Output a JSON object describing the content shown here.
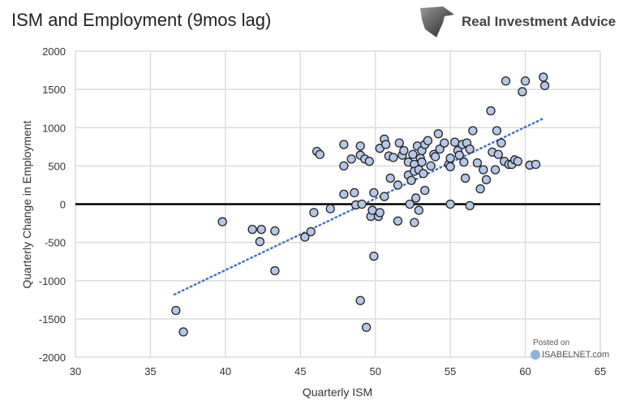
{
  "header": {
    "title": "ISM and Employment (9mos lag)",
    "brand": "Real Investment Advice"
  },
  "watermark": {
    "posted": "Posted on",
    "site": "ISABELNET.com"
  },
  "chart_data": {
    "type": "scatter",
    "title": "ISM and Employment (9mos lag)",
    "xlabel": "Quarterly ISM",
    "ylabel": "Quarterly Change in Employment",
    "xlim": [
      30,
      65
    ],
    "ylim": [
      -2000,
      2000
    ],
    "xticks": [
      "30",
      "35",
      "40",
      "45",
      "50",
      "55",
      "60",
      "65"
    ],
    "yticks": [
      "2000",
      "1500",
      "1000",
      "500",
      "0",
      "-500",
      "-1000",
      "-1500",
      "-2000"
    ],
    "grid": true,
    "marker_color": "#b4c7e7",
    "trendline": {
      "style": "dotted",
      "color": "#4472c4",
      "points": [
        [
          36.6,
          -1180
        ],
        [
          61.2,
          1120
        ]
      ]
    },
    "points": [
      [
        36.7,
        -1390
      ],
      [
        37.2,
        -1670
      ],
      [
        39.8,
        -230
      ],
      [
        41.8,
        -330
      ],
      [
        42.4,
        -330
      ],
      [
        42.3,
        -490
      ],
      [
        43.3,
        -350
      ],
      [
        43.3,
        -870
      ],
      [
        45.3,
        -430
      ],
      [
        45.7,
        -360
      ],
      [
        45.9,
        -110
      ],
      [
        46.1,
        690
      ],
      [
        46.3,
        650
      ],
      [
        47.0,
        -60
      ],
      [
        47.9,
        780
      ],
      [
        47.9,
        500
      ],
      [
        47.9,
        130
      ],
      [
        48.4,
        590
      ],
      [
        48.6,
        150
      ],
      [
        48.7,
        -10
      ],
      [
        49.0,
        640
      ],
      [
        49.0,
        760
      ],
      [
        49.3,
        590
      ],
      [
        49.1,
        0
      ],
      [
        49.0,
        -1260
      ],
      [
        49.4,
        -1610
      ],
      [
        49.6,
        560
      ],
      [
        49.7,
        -160
      ],
      [
        49.8,
        -80
      ],
      [
        49.9,
        150
      ],
      [
        49.9,
        -680
      ],
      [
        50.2,
        -160
      ],
      [
        50.3,
        -110
      ],
      [
        50.3,
        730
      ],
      [
        50.6,
        850
      ],
      [
        50.7,
        780
      ],
      [
        50.6,
        100
      ],
      [
        50.9,
        630
      ],
      [
        51.0,
        340
      ],
      [
        51.2,
        610
      ],
      [
        51.5,
        -220
      ],
      [
        51.5,
        250
      ],
      [
        51.6,
        800
      ],
      [
        51.8,
        640
      ],
      [
        51.9,
        700
      ],
      [
        52.2,
        550
      ],
      [
        52.2,
        380
      ],
      [
        52.3,
        0
      ],
      [
        52.4,
        310
      ],
      [
        52.5,
        650
      ],
      [
        52.6,
        520
      ],
      [
        52.6,
        430
      ],
      [
        52.6,
        -240
      ],
      [
        52.7,
        80
      ],
      [
        52.8,
        760
      ],
      [
        52.9,
        -80
      ],
      [
        52.9,
        450
      ],
      [
        53.0,
        600
      ],
      [
        53.1,
        550
      ],
      [
        53.1,
        700
      ],
      [
        53.2,
        400
      ],
      [
        53.3,
        180
      ],
      [
        53.3,
        780
      ],
      [
        53.5,
        830
      ],
      [
        53.7,
        500
      ],
      [
        53.9,
        650
      ],
      [
        54.0,
        620
      ],
      [
        54.2,
        920
      ],
      [
        54.3,
        720
      ],
      [
        54.6,
        800
      ],
      [
        54.9,
        520
      ],
      [
        55.0,
        0
      ],
      [
        55.0,
        600
      ],
      [
        55.0,
        490
      ],
      [
        55.3,
        810
      ],
      [
        55.5,
        700
      ],
      [
        55.6,
        640
      ],
      [
        55.8,
        780
      ],
      [
        55.9,
        550
      ],
      [
        56.0,
        340
      ],
      [
        56.1,
        800
      ],
      [
        56.3,
        -20
      ],
      [
        56.3,
        720
      ],
      [
        56.5,
        960
      ],
      [
        56.8,
        540
      ],
      [
        57.0,
        200
      ],
      [
        57.2,
        450
      ],
      [
        57.4,
        320
      ],
      [
        57.7,
        1220
      ],
      [
        57.8,
        680
      ],
      [
        58.0,
        450
      ],
      [
        58.1,
        960
      ],
      [
        58.2,
        650
      ],
      [
        58.4,
        800
      ],
      [
        58.6,
        560
      ],
      [
        58.7,
        1610
      ],
      [
        58.9,
        520
      ],
      [
        59.1,
        520
      ],
      [
        59.3,
        580
      ],
      [
        59.5,
        560
      ],
      [
        59.8,
        1470
      ],
      [
        60.0,
        1610
      ],
      [
        60.3,
        510
      ],
      [
        60.7,
        520
      ],
      [
        61.2,
        1660
      ],
      [
        61.3,
        1550
      ]
    ]
  }
}
